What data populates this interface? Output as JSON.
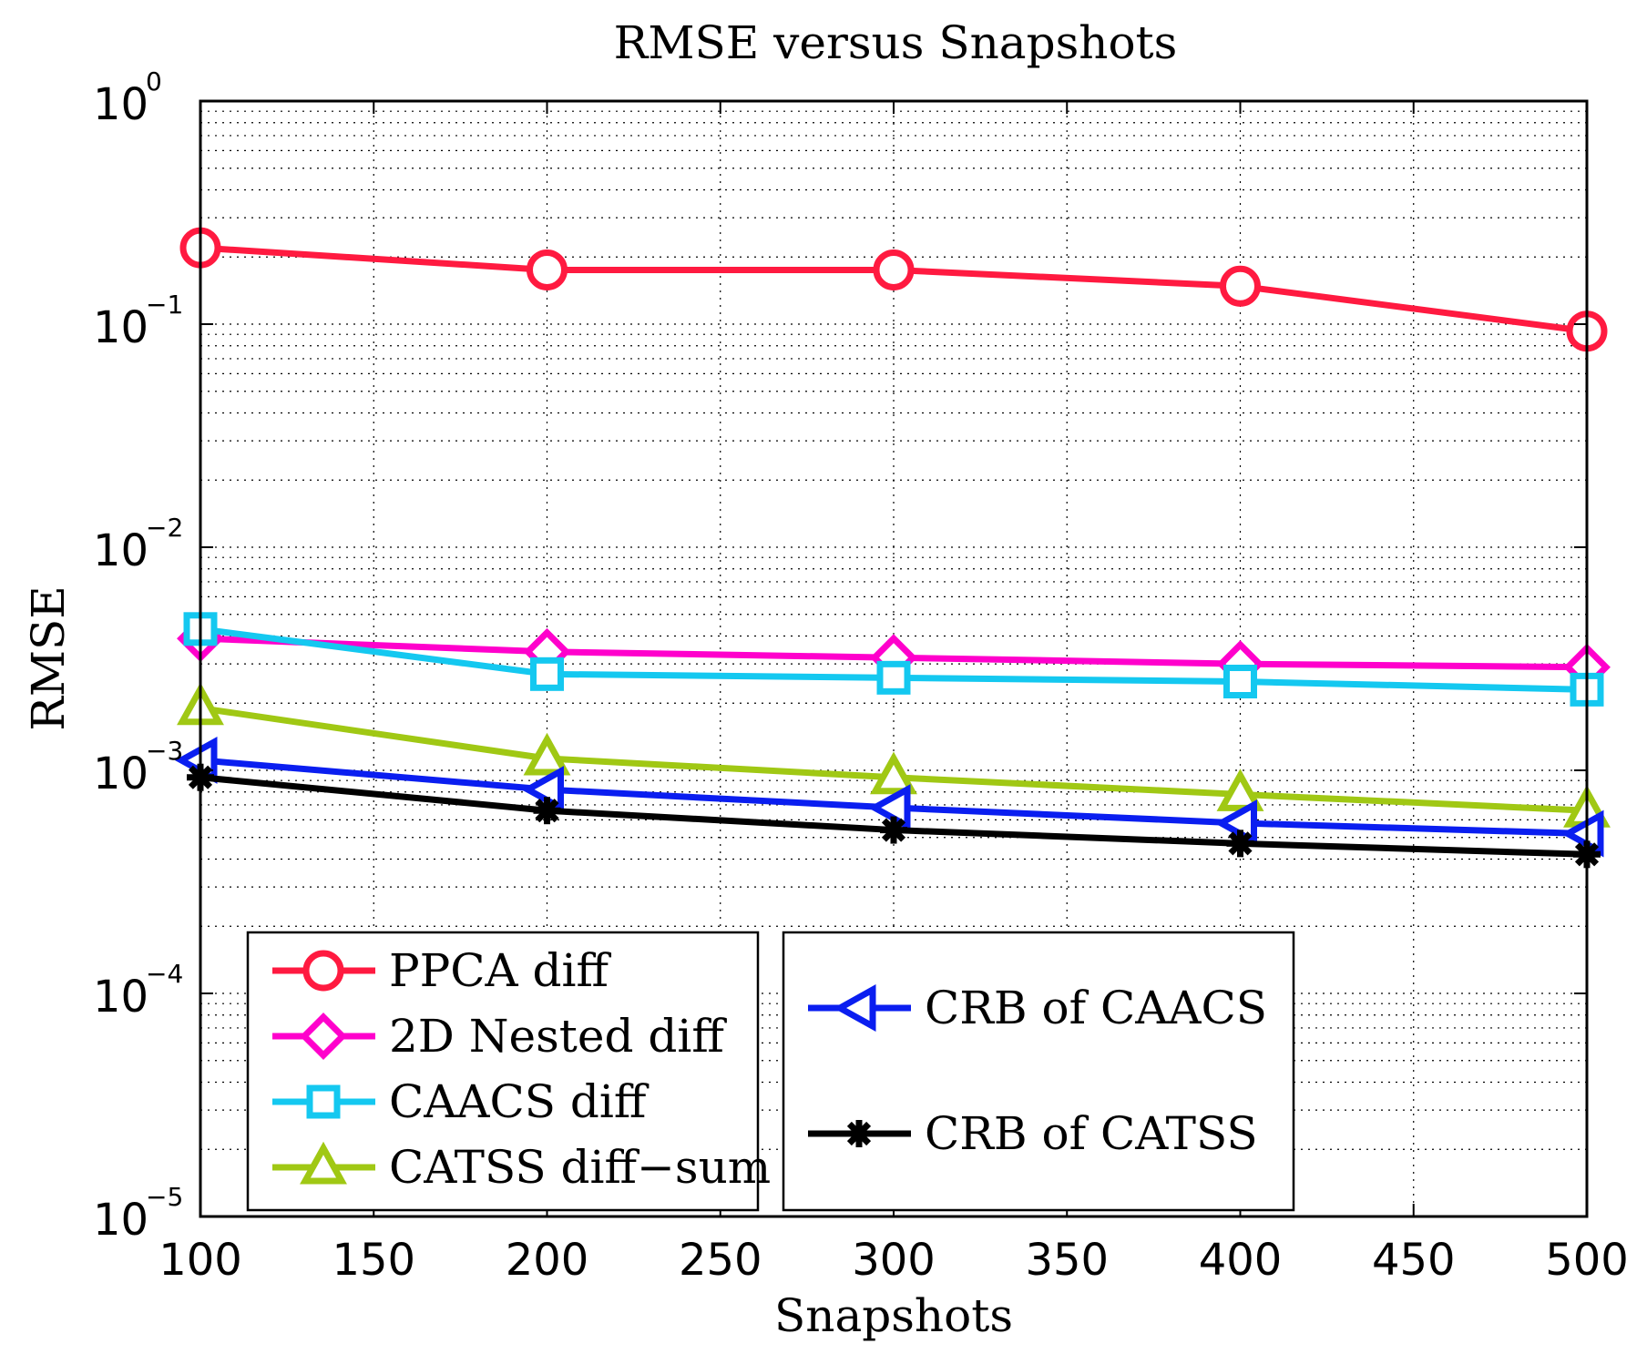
{
  "chart_data": {
    "type": "line",
    "title": "RMSE versus Snapshots",
    "xlabel": "Snapshots",
    "ylabel": "RMSE",
    "yscale": "log",
    "xlim": [
      100,
      500
    ],
    "ylim": [
      1e-05,
      1
    ],
    "grid": true,
    "x": [
      100,
      200,
      300,
      400,
      500
    ],
    "xticks": [
      100,
      150,
      200,
      250,
      300,
      350,
      400,
      450,
      500
    ],
    "xtick_labels": [
      "100",
      "150",
      "200",
      "250",
      "300",
      "350",
      "400",
      "450",
      "500"
    ],
    "yticks": [
      {
        "value": 1e-05,
        "base": "10",
        "exp": "−5"
      },
      {
        "value": 0.0001,
        "base": "10",
        "exp": "−4"
      },
      {
        "value": 0.001,
        "base": "10",
        "exp": "−3"
      },
      {
        "value": 0.01,
        "base": "10",
        "exp": "−2"
      },
      {
        "value": 0.1,
        "base": "10",
        "exp": "−1"
      },
      {
        "value": 1,
        "base": "10",
        "exp": "0"
      }
    ],
    "series": [
      {
        "name": "PPCA diff",
        "color": "#ff1a40",
        "marker": "circle",
        "values": [
          0.22,
          0.175,
          0.175,
          0.148,
          0.093
        ]
      },
      {
        "name": "2D Nested diff",
        "color": "#ff00cc",
        "marker": "diamond",
        "values": [
          0.0039,
          0.0034,
          0.0032,
          0.003,
          0.0029
        ]
      },
      {
        "name": "CAACS diff",
        "color": "#14c8f0",
        "marker": "square",
        "values": [
          0.0043,
          0.0027,
          0.0026,
          0.0025,
          0.0023
        ]
      },
      {
        "name": "CATSS diff−sum",
        "color": "#a0c814",
        "marker": "triangle-up",
        "values": [
          0.0019,
          0.00113,
          0.00093,
          0.00078,
          0.00066
        ]
      },
      {
        "name": "CRB of CAACS",
        "color": "#0a1ef0",
        "marker": "triangle-left",
        "values": [
          0.00111,
          0.00082,
          0.00068,
          0.00058,
          0.00052
        ]
      },
      {
        "name": "CRB of CATSS",
        "color": "#000000",
        "marker": "asterisk",
        "values": [
          0.00093,
          0.00066,
          0.00054,
          0.00047,
          0.00042
        ]
      }
    ],
    "legend": [
      {
        "placement": "bottom-left",
        "series_indices": [
          0,
          1,
          2,
          3
        ]
      },
      {
        "placement": "bottom-center",
        "series_indices": [
          4,
          5
        ]
      }
    ]
  }
}
